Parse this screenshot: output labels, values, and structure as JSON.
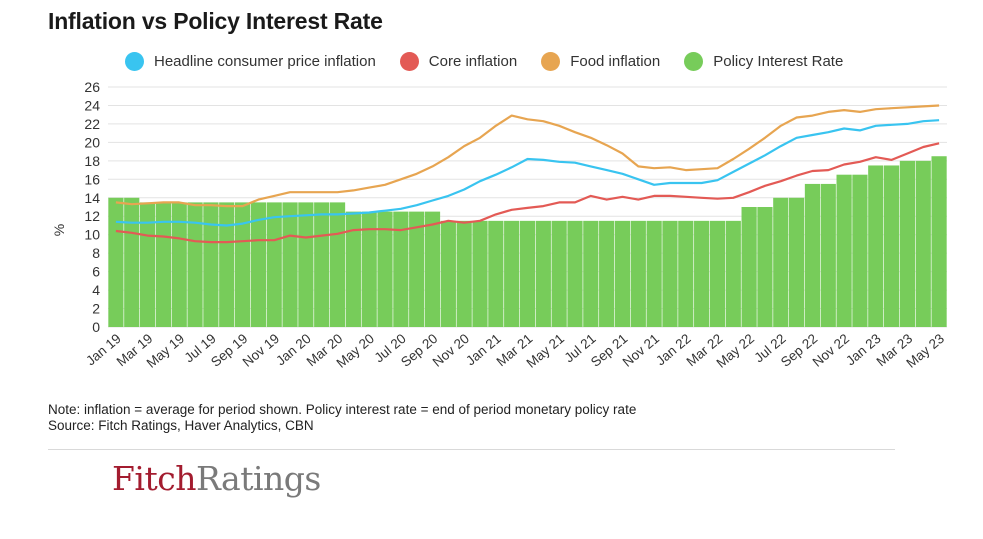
{
  "title": "Inflation vs Policy Interest Rate",
  "legend": [
    {
      "label": "Headline consumer price inflation",
      "color": "#39c4f0"
    },
    {
      "label": "Core inflation",
      "color": "#e35a55"
    },
    {
      "label": "Food inflation",
      "color": "#e7a551"
    },
    {
      "label": "Policy Interest Rate",
      "color": "#77cc5a"
    }
  ],
  "note": "Note: inflation = average for period shown. Policy interest rate = end of period monetary policy rate",
  "source": "Source: Fitch Ratings, Haver Analytics, CBN",
  "logo": {
    "part1": "Fitch",
    "part2": "Ratings"
  },
  "chart_data": {
    "type": "bar",
    "title": "Inflation vs Policy Interest Rate",
    "ylabel": "%",
    "xlabel": "",
    "ylim": [
      0,
      26
    ],
    "yticks": [
      0,
      2,
      4,
      6,
      8,
      10,
      12,
      14,
      16,
      18,
      20,
      22,
      24,
      26
    ],
    "grid": true,
    "legend_position": "top",
    "x_tick_labels": [
      "Jan 19",
      "Mar 19",
      "May 19",
      "Jul 19",
      "Sep 19",
      "Nov 19",
      "Jan 20",
      "Mar 20",
      "May 20",
      "Jul 20",
      "Sep 20",
      "Nov 20",
      "Jan 21",
      "Mar 21",
      "May 21",
      "Jul 21",
      "Sep 21",
      "Nov 21",
      "Jan 22",
      "Mar 22",
      "May 22",
      "Jul 22",
      "Sep 22",
      "Nov 22",
      "Jan 23",
      "Mar 23",
      "May 23"
    ],
    "x": [
      "Jan 19",
      "Feb 19",
      "Mar 19",
      "Apr 19",
      "May 19",
      "Jun 19",
      "Jul 19",
      "Aug 19",
      "Sep 19",
      "Oct 19",
      "Nov 19",
      "Dec 19",
      "Jan 20",
      "Feb 20",
      "Mar 20",
      "Apr 20",
      "May 20",
      "Jun 20",
      "Jul 20",
      "Aug 20",
      "Sep 20",
      "Oct 20",
      "Nov 20",
      "Dec 20",
      "Jan 21",
      "Feb 21",
      "Mar 21",
      "Apr 21",
      "May 21",
      "Jun 21",
      "Jul 21",
      "Aug 21",
      "Sep 21",
      "Oct 21",
      "Nov 21",
      "Dec 21",
      "Jan 22",
      "Feb 22",
      "Mar 22",
      "Apr 22",
      "May 22",
      "Jun 22",
      "Jul 22",
      "Aug 22",
      "Sep 22",
      "Oct 22",
      "Nov 22",
      "Dec 22",
      "Jan 23",
      "Feb 23",
      "Mar 23",
      "Apr 23",
      "May 23"
    ],
    "series": [
      {
        "name": "Policy Interest Rate",
        "kind": "bar",
        "color": "#77cc5a",
        "values": [
          14,
          14,
          13.5,
          13.5,
          13.5,
          13.5,
          13.5,
          13.5,
          13.5,
          13.5,
          13.5,
          13.5,
          13.5,
          13.5,
          13.5,
          12.5,
          12.5,
          12.5,
          12.5,
          12.5,
          12.5,
          11.5,
          11.5,
          11.5,
          11.5,
          11.5,
          11.5,
          11.5,
          11.5,
          11.5,
          11.5,
          11.5,
          11.5,
          11.5,
          11.5,
          11.5,
          11.5,
          11.5,
          11.5,
          11.5,
          13,
          13,
          14,
          14,
          15.5,
          15.5,
          16.5,
          16.5,
          17.5,
          17.5,
          18,
          18,
          18.5
        ]
      },
      {
        "name": "Headline consumer price inflation",
        "kind": "line",
        "color": "#39c4f0",
        "values": [
          11.4,
          11.3,
          11.3,
          11.4,
          11.4,
          11.3,
          11.1,
          11.0,
          11.2,
          11.6,
          11.9,
          12.0,
          12.1,
          12.2,
          12.2,
          12.3,
          12.4,
          12.6,
          12.8,
          13.2,
          13.7,
          14.2,
          14.9,
          15.8,
          16.5,
          17.3,
          18.2,
          18.1,
          17.9,
          17.8,
          17.4,
          17.0,
          16.6,
          16.0,
          15.4,
          15.6,
          15.6,
          15.6,
          15.9,
          16.8,
          17.7,
          18.6,
          19.6,
          20.5,
          20.8,
          21.1,
          21.5,
          21.3,
          21.8,
          21.9,
          22.0,
          22.3,
          22.4
        ]
      },
      {
        "name": "Core inflation",
        "kind": "line",
        "color": "#e35a55",
        "values": [
          10.4,
          10.2,
          9.9,
          9.8,
          9.6,
          9.3,
          9.2,
          9.2,
          9.3,
          9.4,
          9.4,
          9.9,
          9.7,
          9.9,
          10.1,
          10.5,
          10.6,
          10.6,
          10.5,
          10.8,
          11.1,
          11.5,
          11.3,
          11.5,
          12.2,
          12.7,
          12.9,
          13.1,
          13.5,
          13.5,
          14.2,
          13.8,
          14.1,
          13.8,
          14.2,
          14.2,
          14.1,
          14.0,
          13.9,
          14.0,
          14.6,
          15.3,
          15.8,
          16.4,
          16.9,
          17.0,
          17.6,
          17.9,
          18.4,
          18.1,
          18.8,
          19.5,
          19.9
        ]
      },
      {
        "name": "Food inflation",
        "kind": "line",
        "color": "#e7a551",
        "values": [
          13.5,
          13.3,
          13.4,
          13.5,
          13.5,
          13.2,
          13.2,
          13.1,
          13.1,
          13.8,
          14.2,
          14.6,
          14.6,
          14.6,
          14.6,
          14.8,
          15.1,
          15.4,
          16.0,
          16.6,
          17.4,
          18.4,
          19.6,
          20.5,
          21.8,
          22.9,
          22.5,
          22.3,
          21.8,
          21.1,
          20.5,
          19.7,
          18.8,
          17.4,
          17.2,
          17.3,
          17.0,
          17.1,
          17.2,
          18.2,
          19.3,
          20.5,
          21.8,
          22.7,
          22.9,
          23.3,
          23.5,
          23.3,
          23.6,
          23.7,
          23.8,
          23.9,
          24.0
        ]
      }
    ]
  }
}
